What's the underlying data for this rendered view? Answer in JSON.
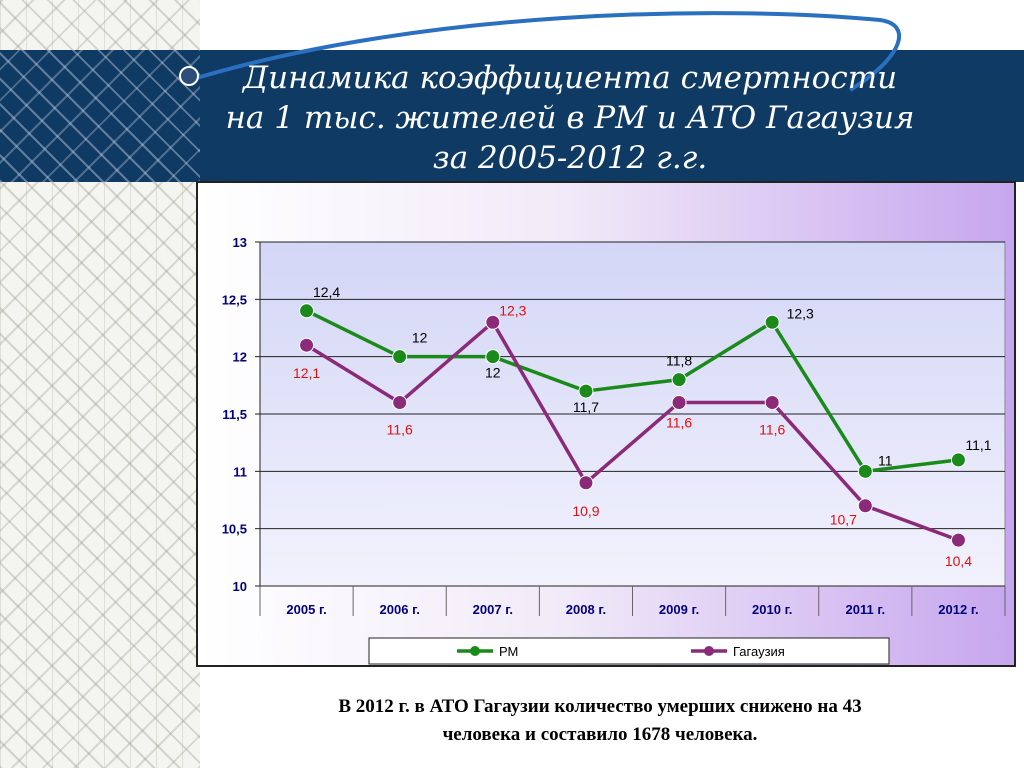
{
  "title_lines": [
    "Динамика коэффициента смертности",
    "на 1 тыс. жителей в РМ и АТО Гагаузия",
    "за 2005-2012 г.г."
  ],
  "caption_lines": [
    "В 2012 г. в АТО Гагаузии количество умерших снижено на 43",
    "человека и составило 1678 человека."
  ],
  "chart_data": {
    "type": "line",
    "categories": [
      "2005 г.",
      "2006 г.",
      "2007 г.",
      "2008 г.",
      "2009 г.",
      "2010 г.",
      "2011 г.",
      "2012 г."
    ],
    "y_ticks": [
      "10",
      "10,5",
      "11",
      "11,5",
      "12",
      "12,5",
      "13"
    ],
    "ylim": [
      10,
      13
    ],
    "grid": true,
    "legend_position": "bottom",
    "series": [
      {
        "name": "РМ",
        "values": [
          12.4,
          12.0,
          12.0,
          11.7,
          11.8,
          12.3,
          11.0,
          11.1
        ],
        "labels": [
          "12,4",
          "12",
          "12",
          "11,7",
          "11,8",
          "12,3",
          "11",
          "11,1"
        ],
        "color": "#1a8a1a",
        "label_color": "#000000"
      },
      {
        "name": "Гагаузия",
        "values": [
          12.1,
          11.6,
          12.3,
          10.9,
          11.6,
          11.6,
          10.7,
          10.4
        ],
        "labels": [
          "12,1",
          "11,6",
          "12,3",
          "10,9",
          "11,6",
          "11,6",
          "10,7",
          "10,4"
        ],
        "color": "#8b2a78",
        "label_color": "#e01010"
      }
    ]
  }
}
